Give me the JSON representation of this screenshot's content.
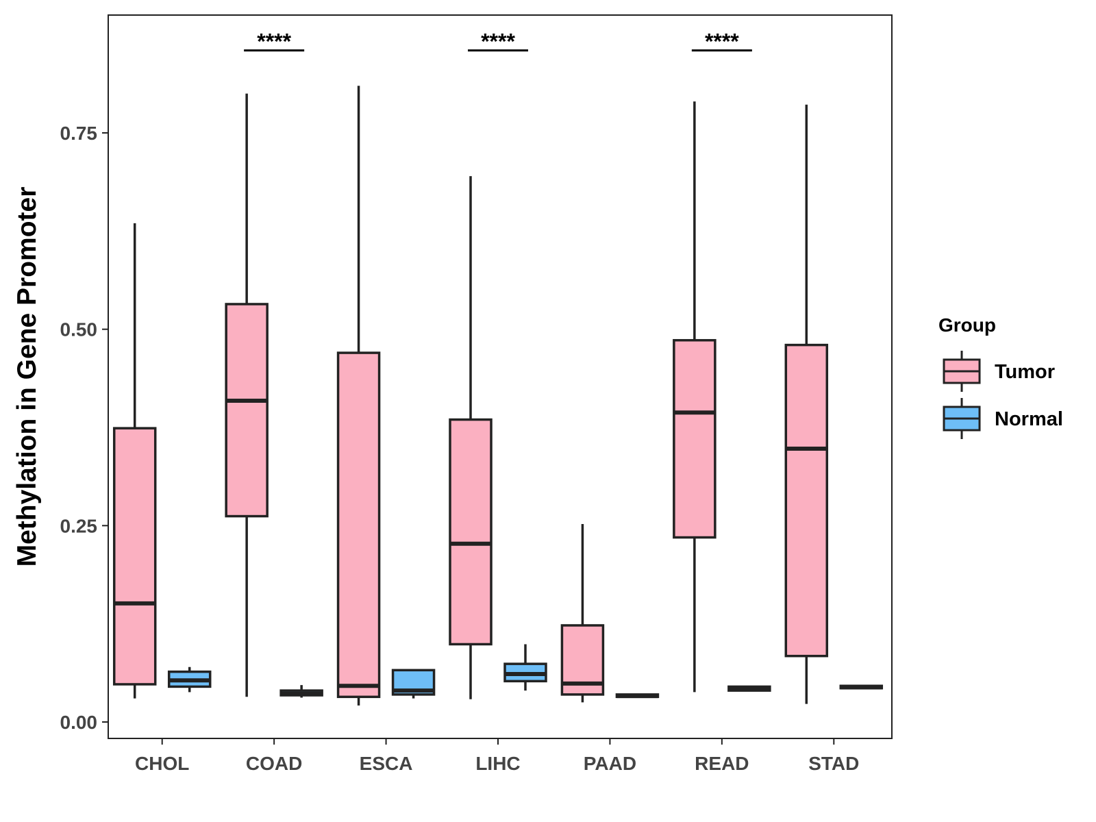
{
  "chart_data": {
    "type": "boxplot",
    "title": "",
    "xlabel": "",
    "ylabel": "Methylation in Gene Promoter",
    "ylim": [
      -0.02,
      0.9
    ],
    "yticks": [
      0.0,
      0.25,
      0.5,
      0.75
    ],
    "ytick_labels": [
      "0.00",
      "0.25",
      "0.50",
      "0.75"
    ],
    "categories": [
      "CHOL",
      "COAD",
      "ESCA",
      "LIHC",
      "PAAD",
      "READ",
      "STAD"
    ],
    "legend": {
      "title": "Group",
      "position": "right",
      "entries": [
        {
          "name": "Tumor",
          "color": "#FBB0C1"
        },
        {
          "name": "Normal",
          "color": "#6EBEF7"
        }
      ]
    },
    "series": [
      {
        "name": "Tumor",
        "color": "#FBB0C1",
        "boxes": [
          {
            "category": "CHOL",
            "min": 0.03,
            "q1": 0.048,
            "median": 0.151,
            "q3": 0.374,
            "max": 0.635
          },
          {
            "category": "COAD",
            "min": 0.032,
            "q1": 0.262,
            "median": 0.409,
            "q3": 0.532,
            "max": 0.8
          },
          {
            "category": "ESCA",
            "min": 0.021,
            "q1": 0.032,
            "median": 0.046,
            "q3": 0.47,
            "max": 0.81
          },
          {
            "category": "LIHC",
            "min": 0.029,
            "q1": 0.099,
            "median": 0.227,
            "q3": 0.385,
            "max": 0.695
          },
          {
            "category": "PAAD",
            "min": 0.025,
            "q1": 0.035,
            "median": 0.049,
            "q3": 0.123,
            "max": 0.252
          },
          {
            "category": "READ",
            "min": 0.038,
            "q1": 0.235,
            "median": 0.394,
            "q3": 0.486,
            "max": 0.79
          },
          {
            "category": "STAD",
            "min": 0.023,
            "q1": 0.084,
            "median": 0.348,
            "q3": 0.48,
            "max": 0.786
          }
        ]
      },
      {
        "name": "Normal",
        "color": "#6EBEF7",
        "boxes": [
          {
            "category": "CHOL",
            "min": 0.038,
            "q1": 0.045,
            "median": 0.053,
            "q3": 0.064,
            "max": 0.07
          },
          {
            "category": "COAD",
            "min": 0.031,
            "q1": 0.034,
            "median": 0.036,
            "q3": 0.04,
            "max": 0.047
          },
          {
            "category": "ESCA",
            "min": 0.03,
            "q1": 0.035,
            "median": 0.04,
            "q3": 0.066,
            "max": 0.066
          },
          {
            "category": "LIHC",
            "min": 0.04,
            "q1": 0.052,
            "median": 0.061,
            "q3": 0.074,
            "max": 0.099
          },
          {
            "category": "PAAD",
            "min": 0.031,
            "q1": 0.032,
            "median": 0.033,
            "q3": 0.035,
            "max": 0.036
          },
          {
            "category": "READ",
            "min": 0.039,
            "q1": 0.04,
            "median": 0.042,
            "q3": 0.045,
            "max": 0.046
          },
          {
            "category": "STAD",
            "min": 0.042,
            "q1": 0.043,
            "median": 0.044,
            "q3": 0.046,
            "max": 0.047
          }
        ]
      }
    ],
    "annotations": [
      {
        "category": "COAD",
        "label": "****",
        "y": 0.855
      },
      {
        "category": "LIHC",
        "label": "****",
        "y": 0.855
      },
      {
        "category": "READ",
        "label": "****",
        "y": 0.855
      }
    ]
  }
}
